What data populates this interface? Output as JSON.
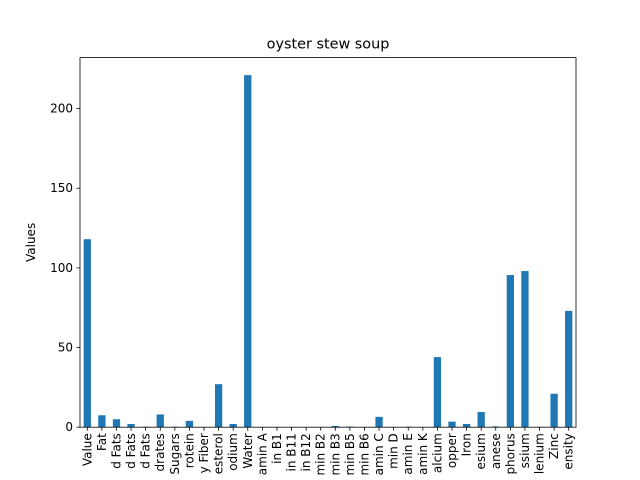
{
  "chart_data": {
    "type": "bar",
    "title": "oyster stew soup",
    "xlabel": "",
    "ylabel": "Values",
    "ylim": [
      0,
      232
    ],
    "yticks": [
      0,
      50,
      100,
      150,
      200
    ],
    "bar_color": "#1f77b4",
    "legend": "none",
    "grid": false,
    "categories": [
      "Value",
      "Fat",
      "d Fats",
      "d Fats",
      "d Fats",
      "drates",
      "Sugars",
      "rotein",
      "y Fiber",
      "esterol",
      "odium",
      "Water",
      "amin A",
      "in B1",
      "in B11",
      "in B12",
      "min B2",
      "min B3",
      "min B5",
      "min B6",
      "amin C",
      "min D",
      "amin E",
      "amin K",
      "alcium",
      "opper",
      "Iron",
      "esium",
      "anese",
      "phorus",
      "ssium",
      "lenium",
      "Zinc",
      "ensity"
    ],
    "values": [
      118,
      7.5,
      5,
      2,
      0.3,
      8,
      0.3,
      4,
      0,
      27,
      2,
      221,
      0.2,
      0.1,
      0.1,
      0.1,
      0.2,
      0.8,
      0.4,
      0.1,
      6.5,
      0.2,
      0.3,
      0.1,
      44,
      3.5,
      2,
      9.5,
      0.5,
      95.5,
      98,
      0.2,
      21,
      73
    ]
  }
}
